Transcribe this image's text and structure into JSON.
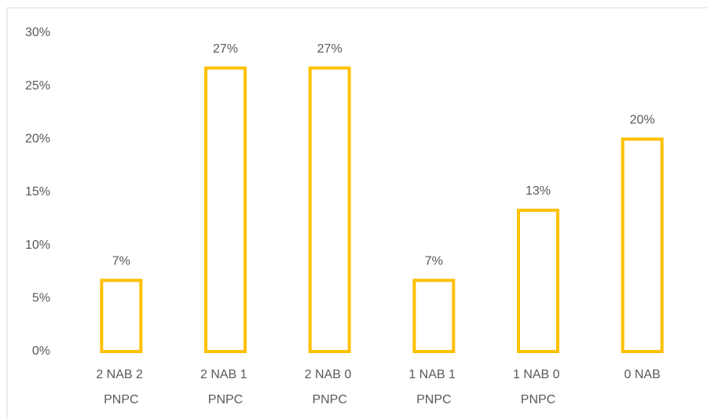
{
  "chart_data": {
    "type": "bar",
    "categories": [
      "2 NAB 2 PNPC",
      "2 NAB 1 PNPC",
      "2 NAB 0 PNPC",
      "1 NAB 1 PNPC",
      "1 NAB 0 PNPC",
      "0 NAB"
    ],
    "values": [
      6.7,
      26.7,
      26.7,
      6.7,
      13.3,
      20
    ],
    "value_labels": [
      "7%",
      "27%",
      "27%",
      "7%",
      "13%",
      "20%"
    ],
    "color": "#ffc000",
    "ylim": [
      0,
      30
    ],
    "yticks": [
      {
        "value": 0,
        "label": "0%"
      },
      {
        "value": 5,
        "label": "5%"
      },
      {
        "value": 10,
        "label": "10%"
      },
      {
        "value": 15,
        "label": "15%"
      },
      {
        "value": 20,
        "label": "20%"
      },
      {
        "value": 25,
        "label": "25%"
      },
      {
        "value": 30,
        "label": "30%"
      }
    ],
    "grid": false
  }
}
